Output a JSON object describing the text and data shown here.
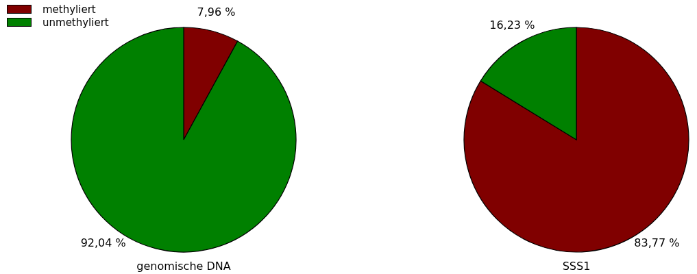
{
  "chart_data": [
    {
      "type": "pie",
      "title": "genomische DNA",
      "categories": [
        "methyliert",
        "unmethyliert"
      ],
      "values": [
        7.96,
        92.04
      ],
      "colors": [
        "#800000",
        "#008000"
      ],
      "value_labels": [
        "7,96 %",
        "92,04 %"
      ],
      "legend": "top left"
    },
    {
      "type": "pie",
      "title": "SSS1",
      "categories": [
        null,
        null
      ],
      "values": [
        83.77,
        16.23
      ],
      "colors": [
        "#800000",
        "#008000"
      ],
      "value_labels": [
        "83,77 %",
        "16,23 %"
      ],
      "legend": false
    }
  ]
}
